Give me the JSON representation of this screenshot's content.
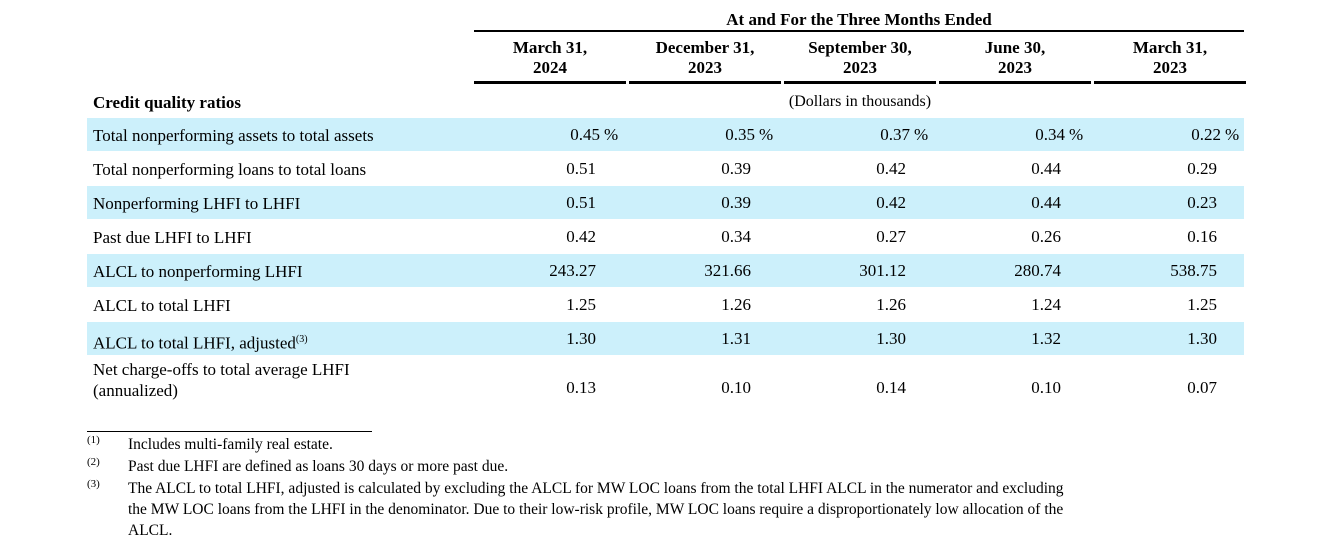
{
  "header": {
    "group_title": "At and For the Three Months Ended",
    "columns": [
      {
        "line1": "March 31,",
        "line2": "2024"
      },
      {
        "line1": "December 31,",
        "line2": "2023"
      },
      {
        "line1": "September 30,",
        "line2": "2023"
      },
      {
        "line1": "June 30,",
        "line2": "2023"
      },
      {
        "line1": "March 31,",
        "line2": "2023"
      }
    ],
    "section_label": "Credit quality ratios",
    "units": "(Dollars in thousands)"
  },
  "rows": [
    {
      "label": "Total nonperforming assets to total assets",
      "values": [
        "0.45",
        "0.35",
        "0.37",
        "0.34",
        "0.22"
      ],
      "suffix": "%",
      "shaded": true
    },
    {
      "label": "Total nonperforming loans to total loans",
      "values": [
        "0.51",
        "0.39",
        "0.42",
        "0.44",
        "0.29"
      ],
      "shaded": false
    },
    {
      "label": "Nonperforming LHFI to LHFI",
      "values": [
        "0.51",
        "0.39",
        "0.42",
        "0.44",
        "0.23"
      ],
      "shaded": true
    },
    {
      "label": "Past due LHFI to LHFI",
      "values": [
        "0.42",
        "0.34",
        "0.27",
        "0.26",
        "0.16"
      ],
      "shaded": false
    },
    {
      "label": "ALCL to nonperforming LHFI",
      "values": [
        "243.27",
        "321.66",
        "301.12",
        "280.74",
        "538.75"
      ],
      "shaded": true
    },
    {
      "label": "ALCL to total LHFI",
      "values": [
        "1.25",
        "1.26",
        "1.26",
        "1.24",
        "1.25"
      ],
      "shaded": false
    },
    {
      "label": "ALCL to total LHFI, adjusted",
      "sup": "(3)",
      "values": [
        "1.30",
        "1.31",
        "1.30",
        "1.32",
        "1.30"
      ],
      "shaded": true
    },
    {
      "label_line1": "Net charge-offs to total average LHFI",
      "label_line2": "(annualized)",
      "values": [
        "0.13",
        "0.10",
        "0.14",
        "0.10",
        "0.07"
      ],
      "shaded": false
    }
  ],
  "footnotes": [
    {
      "mark": "(1)",
      "text": "Includes multi-family real estate."
    },
    {
      "mark": "(2)",
      "text": "Past due LHFI are defined as loans 30 days or more past due."
    },
    {
      "mark": "(3)",
      "lines": [
        "The ALCL to total LHFI, adjusted is calculated by excluding the ALCL for MW LOC loans from the total LHFI ALCL in the numerator and excluding",
        "the MW LOC loans from the LHFI in the denominator. Due to their low-risk profile, MW LOC loans require a disproportionately low allocation of the",
        "ALCL."
      ]
    }
  ],
  "colors": {
    "row_shade": "#ccf0fb",
    "text": "#000000"
  }
}
